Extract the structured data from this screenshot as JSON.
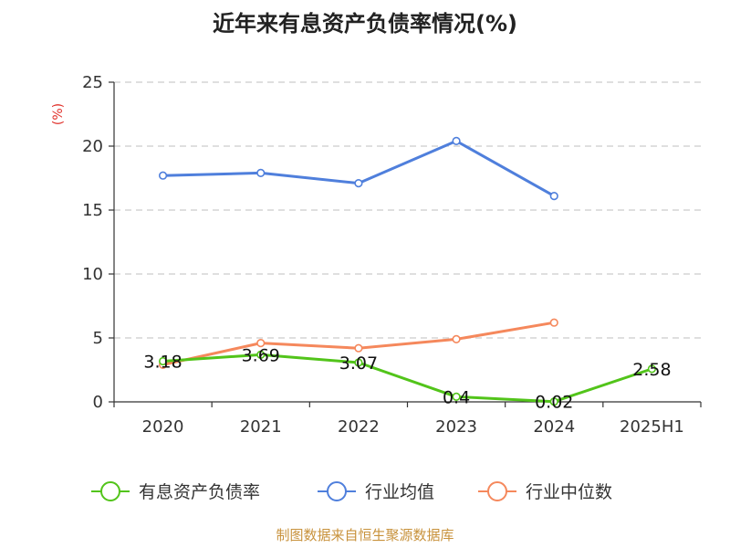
{
  "chart_data": {
    "type": "line",
    "title": "近年来有息资产负债率情况(%)",
    "unit_label": "(%)",
    "categories": [
      "2020",
      "2021",
      "2022",
      "2023",
      "2024",
      "2025H1"
    ],
    "ylim": [
      0,
      25
    ],
    "yticks": [
      0,
      5,
      10,
      15,
      20,
      25
    ],
    "grid": true,
    "legend_position": "bottom",
    "series": [
      {
        "name": "有息资产负债率",
        "color": "#52c41a",
        "values": [
          3.18,
          3.69,
          3.07,
          0.4,
          0.02,
          2.58
        ],
        "labels": [
          "3.18",
          "3.69",
          "3.07",
          "0.4",
          "0.02",
          "2.58"
        ]
      },
      {
        "name": "行业均值",
        "color": "#4f7fdc",
        "values": [
          17.7,
          17.9,
          17.1,
          20.4,
          16.1,
          null
        ]
      },
      {
        "name": "行业中位数",
        "color": "#f5885c",
        "values": [
          2.9,
          4.6,
          4.2,
          4.9,
          6.2,
          null
        ]
      }
    ],
    "source": "制图数据来自恒生聚源数据库",
    "unit_color": "#e0302a",
    "source_color": "#c8923c"
  }
}
